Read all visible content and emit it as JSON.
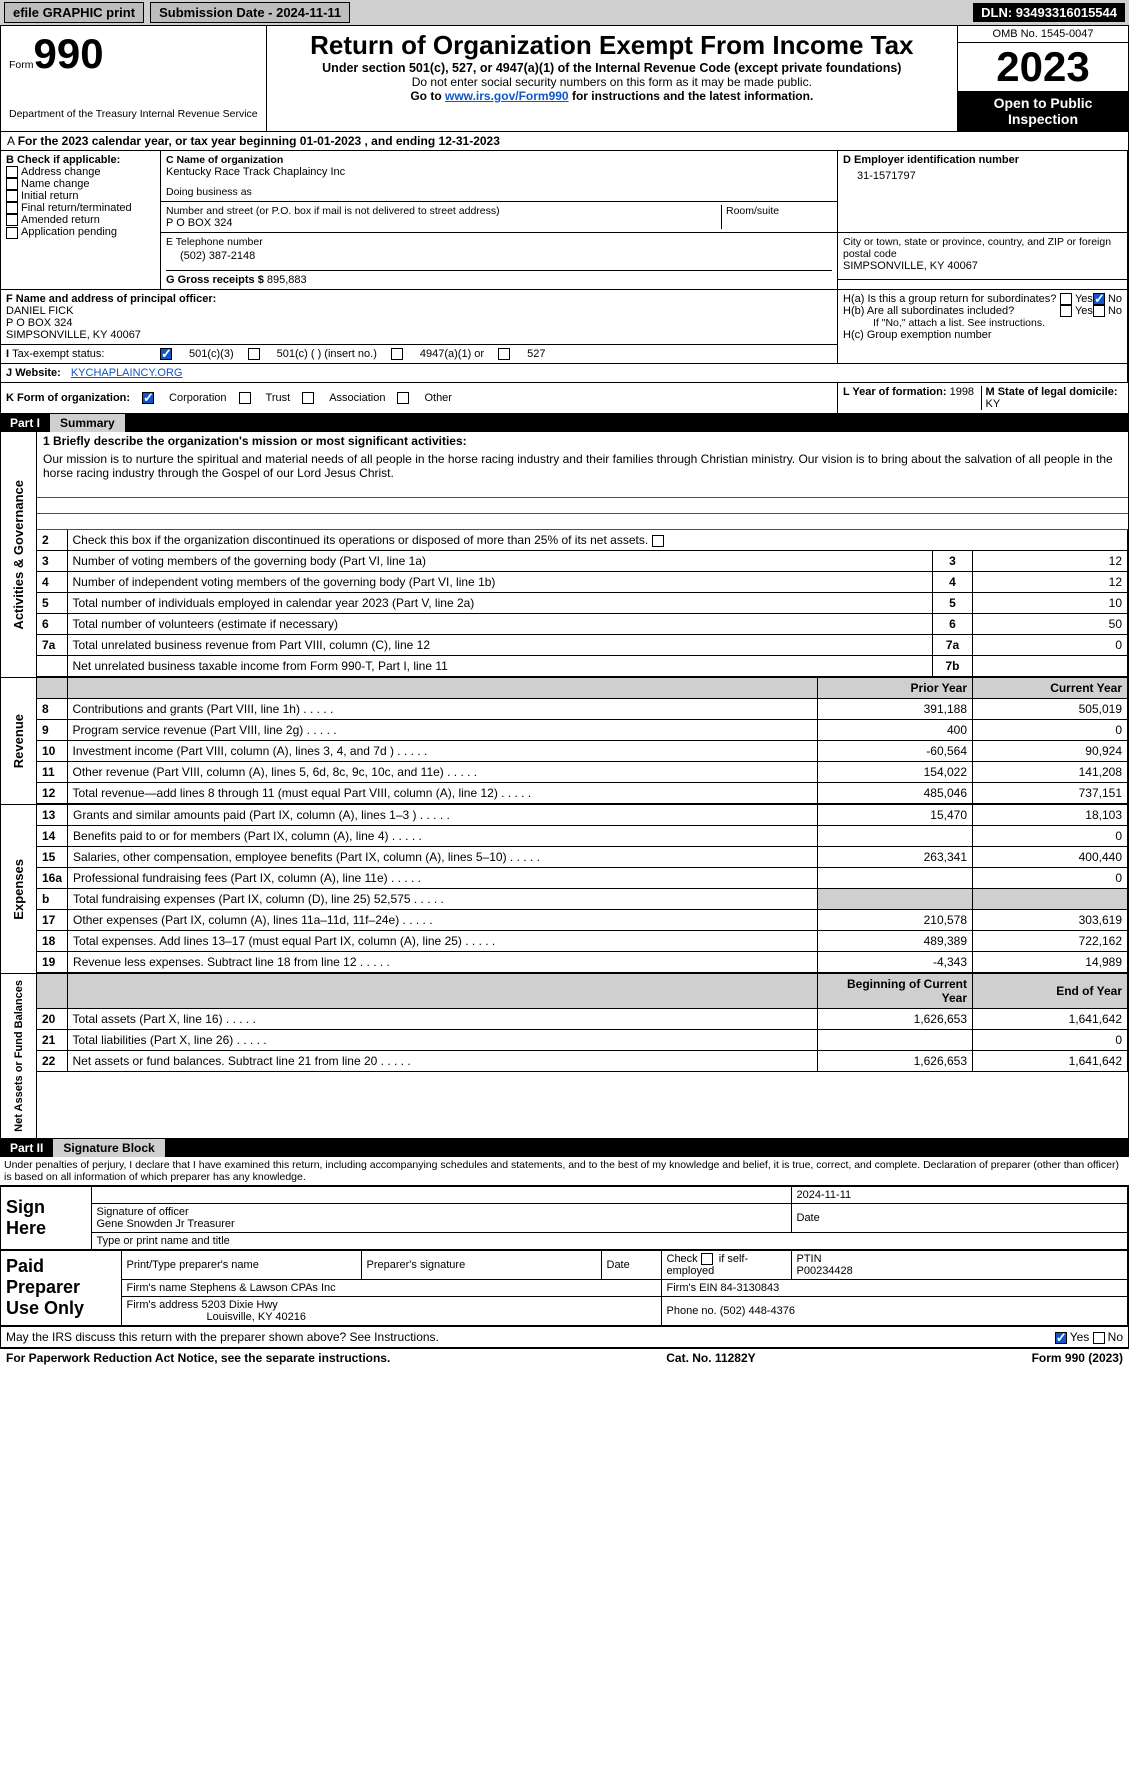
{
  "topbar": {
    "efile": "efile GRAPHIC print",
    "submission_label": "Submission Date - 2024-11-11",
    "dln": "DLN: 93493316015544"
  },
  "header": {
    "form_word": "Form",
    "form_no": "990",
    "dept": "Department of the Treasury Internal Revenue Service",
    "title": "Return of Organization Exempt From Income Tax",
    "subtitle": "Under section 501(c), 527, or 4947(a)(1) of the Internal Revenue Code (except private foundations)",
    "warn": "Do not enter social security numbers on this form as it may be made public.",
    "goto_pre": "Go to ",
    "goto_link": "www.irs.gov/Form990",
    "goto_post": " for instructions and the latest information.",
    "omb": "OMB No. 1545-0047",
    "year": "2023",
    "open": "Open to Public Inspection"
  },
  "periodA": "For the 2023 calendar year, or tax year beginning 01-01-2023   , and ending 12-31-2023",
  "boxB": {
    "title": "B Check if applicable:",
    "items": [
      "Address change",
      "Name change",
      "Initial return",
      "Final return/terminated",
      "Amended return",
      "Application pending"
    ]
  },
  "boxC": {
    "label_name": "C Name of organization",
    "name": "Kentucky Race Track Chaplaincy Inc",
    "dba_label": "Doing business as",
    "street_label": "Number and street (or P.O. box if mail is not delivered to street address)",
    "street": "P O BOX 324",
    "room_label": "Room/suite",
    "city_label": "City or town, state or province, country, and ZIP or foreign postal code",
    "city": "SIMPSONVILLE, KY  40067"
  },
  "boxD": {
    "label": "D Employer identification number",
    "value": "31-1571797"
  },
  "boxE": {
    "label": "E Telephone number",
    "value": "(502) 387-2148"
  },
  "boxG": {
    "label": "G Gross receipts $",
    "value": "895,883"
  },
  "boxF": {
    "label": "F  Name and address of principal officer:",
    "name": "DANIEL FICK",
    "addr1": "P O BOX 324",
    "addr2": "SIMPSONVILLE, KY  40067"
  },
  "boxH": {
    "ha": "H(a)  Is this a group return for subordinates?",
    "hb": "H(b)  Are all subordinates included?",
    "hb_note": "If \"No,\" attach a list. See instructions.",
    "hc": "H(c)  Group exemption number",
    "yes": "Yes",
    "no": "No"
  },
  "boxI": {
    "label": "Tax-exempt status:",
    "c3": "501(c)(3)",
    "c": "501(c) (  ) (insert no.)",
    "a4947": "4947(a)(1) or",
    "s527": "527"
  },
  "boxJ": {
    "label": "Website:",
    "value": "KYCHAPLAINCY.ORG"
  },
  "boxK": {
    "label": "K Form of organization:",
    "corp": "Corporation",
    "trust": "Trust",
    "assoc": "Association",
    "other": "Other"
  },
  "boxL": {
    "label": "L Year of formation:",
    "value": "1998"
  },
  "boxM": {
    "label": "M State of legal domicile:",
    "value": "KY"
  },
  "part1": {
    "label": "Part I",
    "title": "Summary"
  },
  "mission": {
    "line1": "1  Briefly describe the organization's mission or most significant activities:",
    "text": "Our mission is to nurture the spiritual and material needs of all people in the horse racing industry and their families through Christian ministry. Our vision is to bring about the salvation of all people in the horse racing industry through the Gospel of our Lord Jesus Christ."
  },
  "gov_section_label": "Activities & Governance",
  "lines_gov": {
    "l2": "Check this box      if the organization discontinued its operations or disposed of more than 25% of its net assets.",
    "l3": "Number of voting members of the governing body (Part VI, line 1a)",
    "l4": "Number of independent voting members of the governing body (Part VI, line 1b)",
    "l5": "Total number of individuals employed in calendar year 2023 (Part V, line 2a)",
    "l6": "Total number of volunteers (estimate if necessary)",
    "l7a": "Total unrelated business revenue from Part VIII, column (C), line 12",
    "l7b": "Net unrelated business taxable income from Form 990-T, Part I, line 11",
    "v3": "12",
    "v4": "12",
    "v5": "10",
    "v6": "50",
    "v7a": "0",
    "v7b": ""
  },
  "colhead": {
    "prior": "Prior Year",
    "current": "Current Year",
    "begin": "Beginning of Current Year",
    "end": "End of Year"
  },
  "rev_label": "Revenue",
  "exp_label": "Expenses",
  "net_label": "Net Assets or Fund Balances",
  "rev": [
    {
      "n": "8",
      "t": "Contributions and grants (Part VIII, line 1h)",
      "p": "391,188",
      "c": "505,019"
    },
    {
      "n": "9",
      "t": "Program service revenue (Part VIII, line 2g)",
      "p": "400",
      "c": "0"
    },
    {
      "n": "10",
      "t": "Investment income (Part VIII, column (A), lines 3, 4, and 7d )",
      "p": "-60,564",
      "c": "90,924"
    },
    {
      "n": "11",
      "t": "Other revenue (Part VIII, column (A), lines 5, 6d, 8c, 9c, 10c, and 11e)",
      "p": "154,022",
      "c": "141,208"
    },
    {
      "n": "12",
      "t": "Total revenue—add lines 8 through 11 (must equal Part VIII, column (A), line 12)",
      "p": "485,046",
      "c": "737,151"
    }
  ],
  "exp": [
    {
      "n": "13",
      "t": "Grants and similar amounts paid (Part IX, column (A), lines 1–3 )",
      "p": "15,470",
      "c": "18,103"
    },
    {
      "n": "14",
      "t": "Benefits paid to or for members (Part IX, column (A), line 4)",
      "p": "",
      "c": "0"
    },
    {
      "n": "15",
      "t": "Salaries, other compensation, employee benefits (Part IX, column (A), lines 5–10)",
      "p": "263,341",
      "c": "400,440"
    },
    {
      "n": "16a",
      "t": "Professional fundraising fees (Part IX, column (A), line 11e)",
      "p": "",
      "c": "0"
    },
    {
      "n": "b",
      "t": "Total fundraising expenses (Part IX, column (D), line 25) 52,575",
      "p": "GRAY",
      "c": "GRAY"
    },
    {
      "n": "17",
      "t": "Other expenses (Part IX, column (A), lines 11a–11d, 11f–24e)",
      "p": "210,578",
      "c": "303,619"
    },
    {
      "n": "18",
      "t": "Total expenses. Add lines 13–17 (must equal Part IX, column (A), line 25)",
      "p": "489,389",
      "c": "722,162"
    },
    {
      "n": "19",
      "t": "Revenue less expenses. Subtract line 18 from line 12",
      "p": "-4,343",
      "c": "14,989"
    }
  ],
  "net": [
    {
      "n": "20",
      "t": "Total assets (Part X, line 16)",
      "p": "1,626,653",
      "c": "1,641,642"
    },
    {
      "n": "21",
      "t": "Total liabilities (Part X, line 26)",
      "p": "",
      "c": "0"
    },
    {
      "n": "22",
      "t": "Net assets or fund balances. Subtract line 21 from line 20",
      "p": "1,626,653",
      "c": "1,641,642"
    }
  ],
  "part2": {
    "label": "Part II",
    "title": "Signature Block"
  },
  "perjury": "Under penalties of perjury, I declare that I have examined this return, including accompanying schedules and statements, and to the best of my knowledge and belief, it is true, correct, and complete. Declaration of preparer (other than officer) is based on all information of which preparer has any knowledge.",
  "sign": {
    "here": "Sign Here",
    "sig_officer": "Signature of officer",
    "date": "Date",
    "sig_date_val": "2024-11-11",
    "name_title": "Gene Snowden Jr Treasurer",
    "type_label": "Type or print name and title"
  },
  "paid": {
    "label": "Paid Preparer Use Only",
    "col_name": "Print/Type preparer's name",
    "col_sig": "Preparer's signature",
    "col_date": "Date",
    "col_check": "Check      if self-employed",
    "col_ptin": "PTIN",
    "ptin": "P00234428",
    "firm_name_label": "Firm's name",
    "firm_name": "Stephens & Lawson CPAs Inc",
    "firm_ein_label": "Firm's EIN",
    "firm_ein": "84-3130843",
    "firm_addr_label": "Firm's address",
    "firm_addr1": "5203 Dixie Hwy",
    "firm_addr2": "Louisville, KY  40216",
    "phone_label": "Phone no.",
    "phone": "(502) 448-4376"
  },
  "discuss": "May the IRS discuss this return with the preparer shown above? See Instructions.",
  "footer": {
    "left": "For Paperwork Reduction Act Notice, see the separate instructions.",
    "mid": "Cat. No. 11282Y",
    "right": "Form 990 (2023)"
  }
}
